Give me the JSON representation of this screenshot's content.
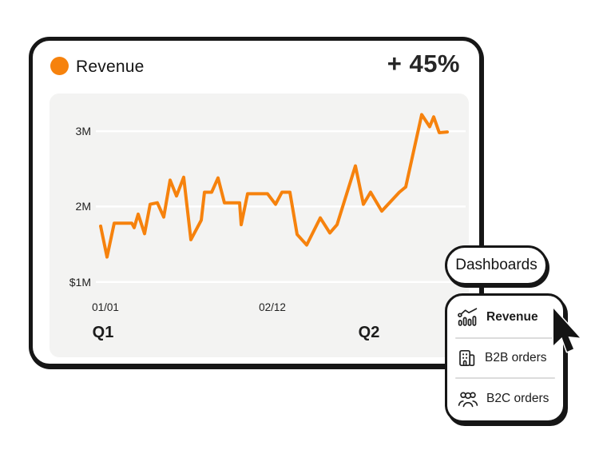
{
  "header": {
    "title": "Revenue",
    "delta": "+ 45%"
  },
  "colors": {
    "accent_orange": "#f6820d",
    "card_border": "#161616",
    "plot_background": "#f3f3f2",
    "gridline": "#ffffff",
    "text_dark": "#1c1c1c"
  },
  "chart_data": {
    "type": "line",
    "title": "Revenue",
    "unit": "USD millions",
    "ylim": [
      0,
      3.5
    ],
    "grid": "horizontal",
    "legend": "none",
    "y_ticks": [
      {
        "label": "3M",
        "value": 3
      },
      {
        "label": "2M",
        "value": 2
      },
      {
        "label": "$1M",
        "value": 1
      }
    ],
    "x_ticks": [
      {
        "label": "01/01",
        "x": 70
      },
      {
        "label": "02/12",
        "x": 279
      }
    ],
    "quarter_labels": [
      {
        "label": "Q1",
        "x": 67
      },
      {
        "label": "Q2",
        "x": 400
      }
    ],
    "series": [
      {
        "name": "Revenue",
        "color": "#f6820d",
        "points": [
          [
            64,
            1.74
          ],
          [
            72,
            1.33
          ],
          [
            81,
            1.78
          ],
          [
            103,
            1.78
          ],
          [
            106,
            1.72
          ],
          [
            111,
            1.9
          ],
          [
            119,
            1.64
          ],
          [
            126,
            2.03
          ],
          [
            135,
            2.05
          ],
          [
            143,
            1.86
          ],
          [
            151,
            2.35
          ],
          [
            159,
            2.14
          ],
          [
            168,
            2.39
          ],
          [
            177,
            1.56
          ],
          [
            190,
            1.82
          ],
          [
            194,
            2.19
          ],
          [
            203,
            2.19
          ],
          [
            211,
            2.38
          ],
          [
            219,
            2.05
          ],
          [
            238,
            2.05
          ],
          [
            240,
            1.76
          ],
          [
            248,
            2.17
          ],
          [
            273,
            2.17
          ],
          [
            283,
            2.03
          ],
          [
            291,
            2.19
          ],
          [
            301,
            2.19
          ],
          [
            310,
            1.63
          ],
          [
            322,
            1.49
          ],
          [
            339,
            1.85
          ],
          [
            351,
            1.65
          ],
          [
            360,
            1.76
          ],
          [
            383,
            2.54
          ],
          [
            393,
            2.03
          ],
          [
            402,
            2.19
          ],
          [
            416,
            1.94
          ],
          [
            438,
            2.19
          ],
          [
            446,
            2.26
          ],
          [
            466,
            3.22
          ],
          [
            476,
            3.06
          ],
          [
            481,
            3.19
          ],
          [
            488,
            2.98
          ],
          [
            498,
            2.99
          ]
        ]
      }
    ]
  },
  "dashboards_button": {
    "label": "Dashboards"
  },
  "menu": {
    "items": [
      {
        "label": "Revenue",
        "icon": "chart-trend-icon",
        "active": true
      },
      {
        "label": "B2B orders",
        "icon": "building-icon",
        "active": false
      },
      {
        "label": "B2C orders",
        "icon": "people-icon",
        "active": false
      }
    ]
  }
}
